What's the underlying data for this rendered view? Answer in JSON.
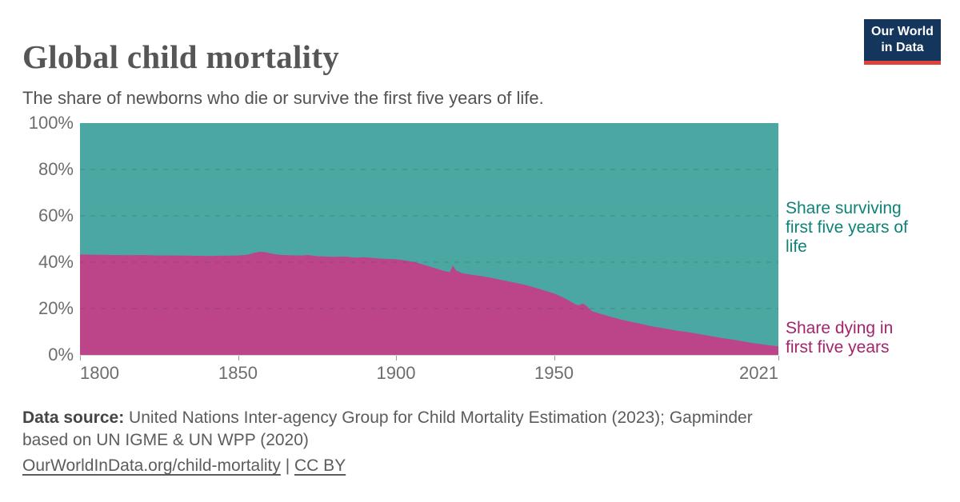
{
  "header": {
    "title": "Global child mortality",
    "subtitle": "The share of newborns who die or survive the first five years of life.",
    "logo": {
      "line1": "Our World",
      "line2": "in Data",
      "background_color": "#14355c",
      "bar_color": "#e0423b"
    }
  },
  "footer": {
    "source_prefix": "Data source:",
    "source_line1": " United Nations Inter-agency Group for Child Mortality Estimation (2023); Gapminder",
    "source_line2": "based on UN IGME & UN WPP (2020)",
    "link_url": "OurWorldInData.org/child-mortality",
    "separator": " | ",
    "license_label": "CC BY"
  },
  "chart_data": {
    "type": "area",
    "stacked": true,
    "stack_total": 100,
    "title": "Global child mortality",
    "xlabel": "",
    "ylabel": "",
    "xlim": [
      1800,
      2021
    ],
    "ylim": [
      0,
      100
    ],
    "x_ticks": [
      1800,
      1850,
      1900,
      1950,
      2021
    ],
    "y_ticks": [
      0,
      20,
      40,
      60,
      80,
      100
    ],
    "y_tick_suffix": "%",
    "grid": "horizontal dashed lines at 20/40/60/80%",
    "legend_position": "direct labels right of plot",
    "x": [
      1800,
      1805,
      1810,
      1815,
      1820,
      1825,
      1830,
      1835,
      1840,
      1845,
      1850,
      1853,
      1855,
      1857,
      1859,
      1861,
      1863,
      1866,
      1870,
      1872,
      1875,
      1878,
      1881,
      1884,
      1887,
      1890,
      1893,
      1896,
      1900,
      1903,
      1906,
      1909,
      1912,
      1915,
      1917,
      1918,
      1919,
      1921,
      1924,
      1927,
      1930,
      1933,
      1936,
      1940,
      1943,
      1946,
      1950,
      1953,
      1955,
      1957,
      1958,
      1959,
      1960,
      1962,
      1965,
      1968,
      1971,
      1974,
      1977,
      1980,
      1983,
      1986,
      1989,
      1992,
      1995,
      1998,
      2001,
      2004,
      2007,
      2010,
      2013,
      2016,
      2019,
      2021
    ],
    "series": [
      {
        "name": "Share dying in first five years",
        "color": "#bc4589",
        "label_color": "#a2246d",
        "values": [
          43.3,
          43.2,
          43.1,
          43.0,
          43.1,
          42.9,
          42.9,
          42.8,
          42.7,
          42.8,
          42.9,
          43.2,
          44.0,
          44.5,
          44.2,
          43.6,
          43.2,
          43.0,
          42.9,
          43.1,
          42.6,
          42.4,
          42.3,
          42.4,
          42.0,
          42.1,
          41.8,
          41.5,
          41.3,
          40.7,
          40.0,
          38.8,
          37.6,
          36.3,
          35.7,
          38.6,
          36.4,
          35.2,
          34.6,
          34.0,
          33.3,
          32.4,
          31.6,
          30.5,
          29.4,
          28.2,
          26.5,
          24.7,
          23.2,
          21.7,
          21.4,
          22.2,
          21.5,
          18.9,
          17.6,
          16.4,
          15.3,
          14.4,
          13.6,
          12.6,
          11.8,
          11.2,
          10.4,
          9.9,
          9.2,
          8.5,
          7.8,
          7.1,
          6.5,
          5.8,
          5.1,
          4.5,
          4.0,
          3.7
        ]
      },
      {
        "name": "Share surviving first five years of life",
        "color": "#4aa7a1",
        "label_color": "#0e8276",
        "values": [
          56.7,
          56.8,
          56.9,
          57.0,
          56.9,
          57.1,
          57.1,
          57.2,
          57.3,
          57.2,
          57.1,
          56.8,
          56.0,
          55.5,
          55.8,
          56.4,
          56.8,
          57.0,
          57.1,
          56.9,
          57.4,
          57.6,
          57.7,
          57.6,
          58.0,
          57.9,
          58.2,
          58.5,
          58.7,
          59.3,
          60.0,
          61.2,
          62.4,
          63.7,
          64.3,
          61.4,
          63.6,
          64.8,
          65.4,
          66.0,
          66.7,
          67.6,
          68.4,
          69.5,
          70.6,
          71.8,
          73.5,
          75.3,
          76.8,
          78.3,
          78.6,
          77.8,
          78.5,
          81.1,
          82.4,
          83.6,
          84.7,
          85.6,
          86.4,
          87.4,
          88.2,
          88.8,
          89.6,
          90.1,
          90.8,
          91.5,
          92.2,
          92.9,
          93.5,
          94.2,
          94.9,
          95.5,
          96.0,
          96.3
        ]
      }
    ]
  }
}
